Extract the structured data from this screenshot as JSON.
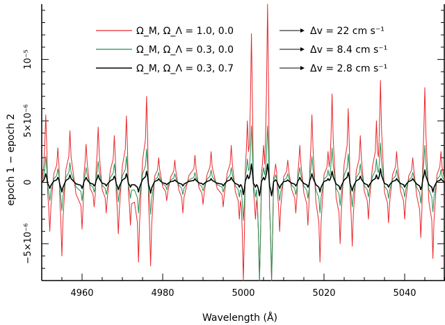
{
  "chart_data": {
    "type": "line",
    "xlabel": "Wavelength (Å)",
    "ylabel": "epoch 1 − epoch 2",
    "xlim": [
      4950,
      5050
    ],
    "ylim": [
      -8e-06,
      1.45e-05
    ],
    "x_ticks": [
      4960,
      4980,
      5000,
      5020,
      5040
    ],
    "x_tick_labels": [
      "4960",
      "4980",
      "5000",
      "5020",
      "5040"
    ],
    "y_ticks": [
      -5e-06,
      0,
      5e-06,
      1e-05
    ],
    "y_tick_labels": [
      "−5×10⁻⁶",
      "0",
      "5×10⁻⁶",
      "10⁻⁵"
    ],
    "grid": false,
    "legend_position": "top",
    "series": [
      {
        "name": "Ω_M, Ω_Λ = 1.0, 0.0",
        "delta_v": "Δv = 22 cm s⁻¹",
        "color": "#e8262a",
        "x": [
          4951,
          4952,
          4954,
          4955,
          4957,
          4960,
          4961,
          4963,
          4964,
          4966,
          4968,
          4969,
          4971,
          4972,
          4974,
          4976,
          4977,
          4979,
          4981,
          4983,
          4985,
          4988,
          4990,
          4992,
          4995,
          4997,
          4999,
          5000,
          5001,
          5002,
          5003,
          5004,
          5005,
          5006,
          5007,
          5008,
          5009,
          5011,
          5013,
          5014,
          5016,
          5017,
          5019,
          5021,
          5022,
          5024,
          5026,
          5027,
          5029,
          5031,
          5033,
          5034,
          5036,
          5038,
          5040,
          5042,
          5044,
          5045,
          5047,
          5049
        ],
        "y": [
          5.5e-06,
          -4e-06,
          2.8e-06,
          -6e-06,
          4.2e-06,
          -3.8e-06,
          3.1e-06,
          -2e-06,
          4.5e-06,
          -2.5e-06,
          3.8e-06,
          -4.2e-06,
          5.4e-06,
          -3.5e-06,
          -6.5e-06,
          7e-06,
          -6.8e-06,
          2e-06,
          -1.5e-06,
          1.8e-06,
          -2.5e-06,
          2.2e-06,
          -1.8e-06,
          2.5e-06,
          -2e-06,
          3e-06,
          -3e-06,
          -8e-06,
          5e-06,
          1.21e-05,
          -3e-06,
          -8e-06,
          3e-06,
          1.45e-05,
          -8e-06,
          1.5e-06,
          -4e-06,
          1.8e-06,
          -2.5e-06,
          3e-06,
          -3.5e-06,
          5.5e-06,
          -6.5e-06,
          2.5e-06,
          7.2e-06,
          -5e-06,
          6e-06,
          -5.2e-06,
          3.8e-06,
          -3e-06,
          5e-06,
          8.3e-06,
          -3.3e-06,
          2.5e-06,
          -3e-06,
          2e-06,
          -4.5e-06,
          7.7e-06,
          -6.2e-06,
          2.5e-06
        ]
      },
      {
        "name": "Ω_M, Ω_Λ = 0.3, 0.0",
        "delta_v": "Δv = 8.4 cm s⁻¹",
        "color": "#1e8f4e",
        "x": [
          4951,
          4952,
          4954,
          4955,
          4957,
          4960,
          4961,
          4963,
          4964,
          4966,
          4968,
          4969,
          4971,
          4972,
          4974,
          4976,
          4977,
          4979,
          4981,
          4983,
          4985,
          4988,
          4990,
          4992,
          4995,
          4997,
          4999,
          5000,
          5001,
          5002,
          5003,
          5004,
          5005,
          5006,
          5007,
          5008,
          5009,
          5011,
          5013,
          5014,
          5016,
          5017,
          5019,
          5021,
          5022,
          5024,
          5026,
          5027,
          5029,
          5031,
          5033,
          5034,
          5036,
          5038,
          5040,
          5042,
          5044,
          5045,
          5047,
          5049
        ],
        "y": [
          2.1e-06,
          -1.5e-06,
          1.1e-06,
          -2.3e-06,
          1.6e-06,
          -1.5e-06,
          1.2e-06,
          -8e-07,
          1.7e-06,
          -1e-06,
          1.5e-06,
          -1.6e-06,
          2.1e-06,
          -1.3e-06,
          -2.5e-06,
          2.7e-06,
          -2.6e-06,
          8e-07,
          -6e-07,
          7e-07,
          -1e-06,
          8e-07,
          -7e-07,
          1e-06,
          -8e-07,
          1.2e-06,
          -1.2e-06,
          -3.1e-06,
          1.9e-06,
          4.6e-06,
          -1.2e-06,
          -8e-06,
          1.2e-06,
          4.6e-06,
          -8e-06,
          6e-07,
          -1.5e-06,
          7e-07,
          -1e-06,
          1.2e-06,
          -1.3e-06,
          2.1e-06,
          -2.5e-06,
          1e-06,
          2.8e-06,
          -1.9e-06,
          2.3e-06,
          -2e-06,
          1.5e-06,
          -1.2e-06,
          1.9e-06,
          3.2e-06,
          -1.3e-06,
          1e-06,
          -1.2e-06,
          8e-07,
          -1.7e-06,
          3e-06,
          -2.4e-06,
          1e-06
        ]
      },
      {
        "name": "Ω_M, Ω_Λ = 0.3, 0.7",
        "delta_v": "Δv = 2.8 cm s⁻¹",
        "color": "#000000",
        "x": [
          4951,
          4952,
          4954,
          4955,
          4957,
          4960,
          4961,
          4963,
          4964,
          4966,
          4968,
          4969,
          4971,
          4972,
          4974,
          4976,
          4977,
          4979,
          4981,
          4983,
          4985,
          4988,
          4990,
          4992,
          4995,
          4997,
          4999,
          5000,
          5001,
          5002,
          5003,
          5004,
          5005,
          5006,
          5007,
          5008,
          5009,
          5011,
          5013,
          5014,
          5016,
          5017,
          5019,
          5021,
          5022,
          5024,
          5026,
          5027,
          5029,
          5031,
          5033,
          5034,
          5036,
          5038,
          5040,
          5042,
          5044,
          5045,
          5047,
          5049
        ],
        "y": [
          7e-07,
          -5e-07,
          4e-07,
          -8e-07,
          6e-07,
          -5e-07,
          4e-07,
          -3e-07,
          6e-07,
          -3e-07,
          5e-07,
          -6e-07,
          7e-07,
          -4e-07,
          -8e-07,
          9e-07,
          -9e-07,
          3e-07,
          -2e-07,
          2e-07,
          -3e-07,
          3e-07,
          -2e-07,
          3e-07,
          -3e-07,
          4e-07,
          -4e-07,
          -1e-06,
          6e-07,
          1.5e-06,
          -4e-07,
          -1.1e-06,
          4e-07,
          1.5e-06,
          -1.1e-06,
          2e-07,
          -5e-07,
          2e-07,
          -3e-07,
          4e-07,
          -4e-07,
          7e-07,
          -8e-07,
          3e-07,
          9e-07,
          -6e-07,
          8e-07,
          -7e-07,
          5e-07,
          -4e-07,
          6e-07,
          1.1e-06,
          -4e-07,
          3e-07,
          -4e-07,
          3e-07,
          -6e-07,
          1e-06,
          -8e-07,
          3e-07
        ]
      }
    ]
  }
}
